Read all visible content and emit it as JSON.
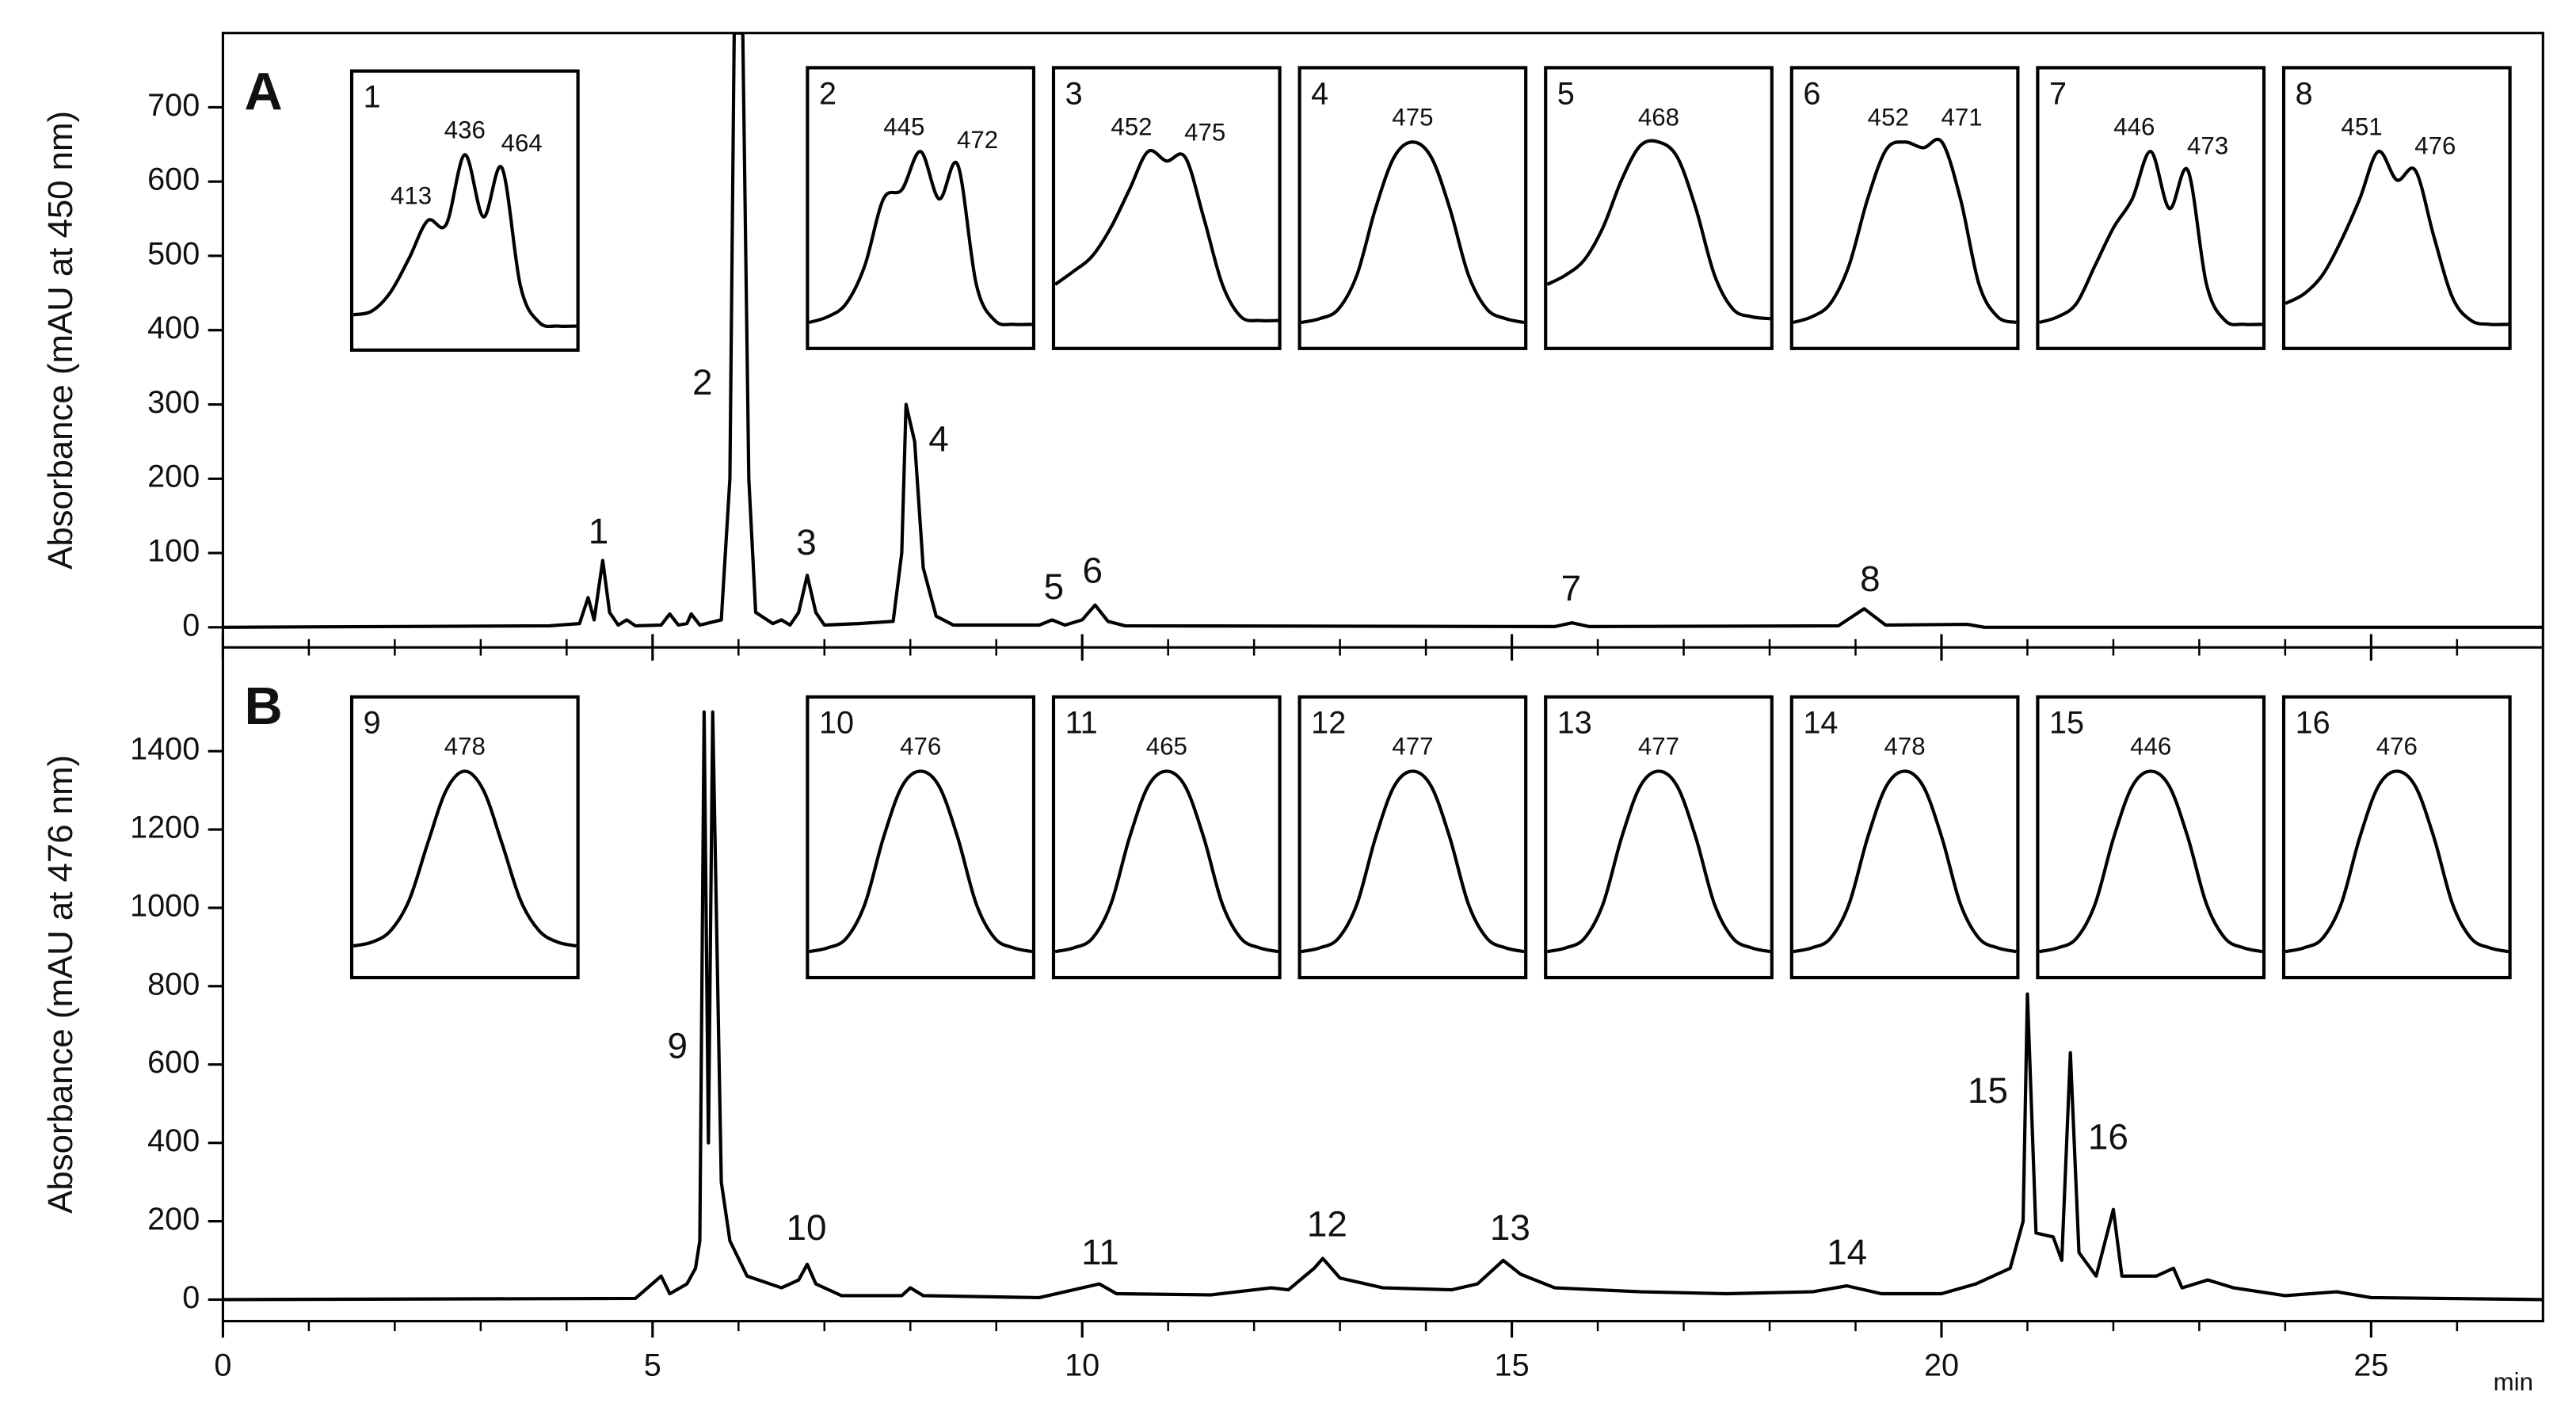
{
  "chart_data": [
    {
      "type": "line",
      "panel_label": "A",
      "y_label": "Absorbance (mAU at 450 nm)",
      "xlim": [
        0,
        27
      ],
      "ylim": [
        -27,
        800
      ],
      "yticks": [
        0,
        100,
        200,
        300,
        400,
        500,
        600,
        700
      ],
      "color": "#000000",
      "x": [
        0,
        3.8,
        4.15,
        4.25,
        4.32,
        4.42,
        4.5,
        4.6,
        4.7,
        4.8,
        5.1,
        5.2,
        5.3,
        5.4,
        5.45,
        5.55,
        5.8,
        5.9,
        5.95,
        6.05,
        6.12,
        6.2,
        6.4,
        6.5,
        6.6,
        6.7,
        6.8,
        6.9,
        7.0,
        7.4,
        7.8,
        7.9,
        7.95,
        8.05,
        8.15,
        8.3,
        8.5,
        9.5,
        9.65,
        9.8,
        10.0,
        10.15,
        10.3,
        10.5,
        15.5,
        15.7,
        15.9,
        18.8,
        19.1,
        19.35,
        20.3,
        20.5,
        27
      ],
      "y": [
        0,
        2,
        5,
        40,
        10,
        90,
        20,
        3,
        10,
        2,
        3,
        18,
        3,
        5,
        18,
        3,
        10,
        200,
        800,
        800,
        200,
        20,
        5,
        10,
        3,
        20,
        70,
        20,
        3,
        5,
        8,
        100,
        300,
        250,
        80,
        15,
        3,
        3,
        10,
        3,
        10,
        30,
        8,
        2,
        1,
        6,
        1,
        2,
        25,
        3,
        4,
        0,
        0
      ],
      "annotations": [
        {
          "text": "1",
          "x": 4.37,
          "y": 126
        },
        {
          "text": "2",
          "x": 5.58,
          "y": 326
        },
        {
          "text": "3",
          "x": 6.79,
          "y": 111
        },
        {
          "text": "4",
          "x": 8.33,
          "y": 250
        },
        {
          "text": "5",
          "x": 9.67,
          "y": 51
        },
        {
          "text": "6",
          "x": 10.12,
          "y": 73
        },
        {
          "text": "7",
          "x": 15.69,
          "y": 49
        },
        {
          "text": "8",
          "x": 19.17,
          "y": 62
        }
      ],
      "insets": [
        {
          "label": "1",
          "wavelengths": [
            "413",
            "436",
            "464"
          ],
          "values": [
            10,
            12,
            22,
            40,
            60,
            58,
            95,
            62,
            88,
            25,
            6,
            4,
            4
          ]
        },
        {
          "label": "2",
          "wavelengths": [
            "445",
            "472"
          ],
          "values": [
            5,
            8,
            15,
            35,
            70,
            75,
            95,
            70,
            88,
            25,
            6,
            4,
            4
          ]
        },
        {
          "label": "3",
          "wavelengths": [
            "452",
            "475"
          ],
          "values": [
            25,
            32,
            40,
            55,
            75,
            95,
            90,
            92,
            60,
            25,
            8,
            6,
            6
          ]
        },
        {
          "label": "4",
          "wavelengths": [
            "475"
          ],
          "values": [
            5,
            7,
            12,
            30,
            65,
            92,
            100,
            92,
            65,
            30,
            12,
            7,
            5
          ]
        },
        {
          "label": "5",
          "wavelengths": [
            "468"
          ],
          "values": [
            25,
            30,
            38,
            55,
            80,
            98,
            100,
            92,
            65,
            30,
            12,
            8,
            7
          ]
        },
        {
          "label": "6",
          "wavelengths": [
            "452",
            "471"
          ],
          "values": [
            5,
            8,
            15,
            35,
            70,
            96,
            100,
            97,
            100,
            70,
            25,
            8,
            5
          ]
        },
        {
          "label": "7",
          "wavelengths": [
            "446",
            "473"
          ],
          "values": [
            5,
            8,
            15,
            35,
            55,
            70,
            95,
            65,
            85,
            25,
            6,
            4,
            4
          ]
        },
        {
          "label": "8",
          "wavelengths": [
            "451",
            "476"
          ],
          "values": [
            15,
            20,
            30,
            48,
            70,
            95,
            80,
            85,
            50,
            18,
            6,
            4,
            4
          ]
        }
      ]
    },
    {
      "type": "line",
      "panel_label": "B",
      "y_label": "Absorbance (mAU at 476 nm)",
      "x_label": "min",
      "xlim": [
        0,
        27
      ],
      "ylim": [
        -55,
        1665
      ],
      "yticks": [
        0,
        200,
        400,
        600,
        800,
        1000,
        1200,
        1400
      ],
      "xticks": [
        0,
        5,
        10,
        15,
        20,
        25
      ],
      "xminorticks": [
        1,
        2,
        3,
        4,
        6,
        7,
        8,
        9,
        11,
        12,
        13,
        14,
        16,
        17,
        18,
        19,
        21,
        22,
        23,
        24,
        26
      ],
      "color": "#000000",
      "x": [
        0,
        4.8,
        5.1,
        5.2,
        5.4,
        5.5,
        5.55,
        5.6,
        5.65,
        5.7,
        5.8,
        5.9,
        6.1,
        6.5,
        6.7,
        6.8,
        6.9,
        7.2,
        7.9,
        8.0,
        8.15,
        9.5,
        10.2,
        10.4,
        11.5,
        12.2,
        12.4,
        12.7,
        12.8,
        13.0,
        13.5,
        14.3,
        14.6,
        14.9,
        15.1,
        15.5,
        16.5,
        17.5,
        18.5,
        18.9,
        19.3,
        20.0,
        20.4,
        20.8,
        20.9,
        20.95,
        21.0,
        21.1,
        21.3,
        21.4,
        21.5,
        21.6,
        21.8,
        22.0,
        22.1,
        22.5,
        22.7,
        22.8,
        23.1,
        23.4,
        24.0,
        24.6,
        25,
        27
      ],
      "y": [
        0,
        3,
        60,
        15,
        40,
        80,
        150,
        1500,
        400,
        1500,
        300,
        150,
        60,
        30,
        50,
        90,
        40,
        10,
        10,
        30,
        10,
        5,
        40,
        15,
        12,
        30,
        25,
        80,
        105,
        55,
        30,
        25,
        40,
        100,
        65,
        30,
        20,
        15,
        20,
        35,
        15,
        15,
        40,
        80,
        160,
        200,
        780,
        170,
        160,
        100,
        630,
        120,
        60,
        230,
        60,
        60,
        80,
        30,
        50,
        30,
        10,
        20,
        5,
        0
      ],
      "annotations": [
        {
          "text": "9",
          "x": 5.29,
          "y": 641
        },
        {
          "text": "10",
          "x": 6.79,
          "y": 177
        },
        {
          "text": "11",
          "x": 10.21,
          "y": 114
        },
        {
          "text": "12",
          "x": 12.85,
          "y": 186
        },
        {
          "text": "13",
          "x": 14.98,
          "y": 177
        },
        {
          "text": "14",
          "x": 18.9,
          "y": 114
        },
        {
          "text": "15",
          "x": 20.54,
          "y": 527
        },
        {
          "text": "16",
          "x": 21.94,
          "y": 409
        }
      ],
      "insets": [
        {
          "label": "9",
          "wavelengths": [
            "478"
          ],
          "values": [
            8,
            10,
            16,
            32,
            62,
            90,
            100,
            90,
            62,
            32,
            16,
            10,
            8
          ]
        },
        {
          "label": "10",
          "wavelengths": [
            "476"
          ],
          "values": [
            5,
            7,
            12,
            30,
            65,
            92,
            100,
            92,
            65,
            30,
            12,
            7,
            5
          ]
        },
        {
          "label": "11",
          "wavelengths": [
            "465"
          ],
          "values": [
            5,
            7,
            12,
            30,
            65,
            92,
            100,
            92,
            65,
            30,
            12,
            7,
            5
          ]
        },
        {
          "label": "12",
          "wavelengths": [
            "477"
          ],
          "values": [
            5,
            7,
            12,
            30,
            65,
            92,
            100,
            92,
            65,
            30,
            12,
            7,
            5
          ]
        },
        {
          "label": "13",
          "wavelengths": [
            "477"
          ],
          "values": [
            5,
            7,
            12,
            30,
            65,
            92,
            100,
            92,
            65,
            30,
            12,
            7,
            5
          ]
        },
        {
          "label": "14",
          "wavelengths": [
            "478"
          ],
          "values": [
            5,
            7,
            12,
            30,
            65,
            92,
            100,
            92,
            65,
            30,
            12,
            7,
            5
          ]
        },
        {
          "label": "15",
          "wavelengths": [
            "446"
          ],
          "values": [
            5,
            7,
            12,
            30,
            65,
            92,
            100,
            92,
            65,
            30,
            12,
            7,
            5
          ]
        },
        {
          "label": "16",
          "wavelengths": [
            "476"
          ],
          "values": [
            5,
            7,
            12,
            30,
            65,
            92,
            100,
            92,
            65,
            30,
            12,
            7,
            5
          ]
        }
      ]
    }
  ]
}
